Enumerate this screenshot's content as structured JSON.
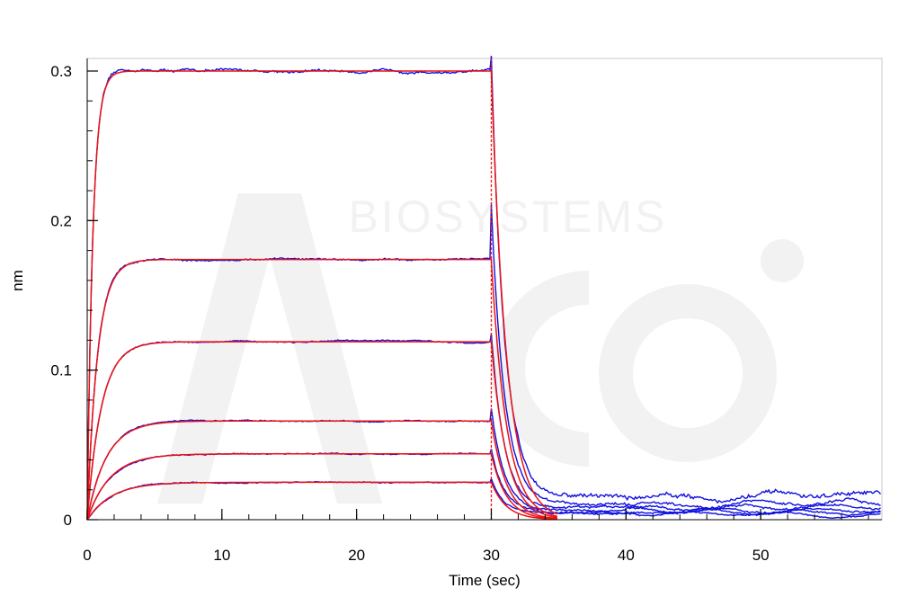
{
  "chart_data": {
    "type": "line",
    "title": "",
    "xlabel": "Time (sec)",
    "ylabel": "nm",
    "xlim": [
      0,
      59
    ],
    "ylim": [
      0,
      0.3
    ],
    "x_ticks": [
      0,
      10,
      20,
      30,
      40,
      50
    ],
    "x_tick_labels": [
      "0",
      "10",
      "20",
      "30",
      "40",
      "50"
    ],
    "y_ticks": [
      0,
      0.1,
      0.2,
      0.3
    ],
    "y_tick_labels": [
      "0",
      "0.1",
      "0.2",
      "0.3"
    ],
    "grid": false,
    "legend": "none",
    "phase_boundary_x": 30,
    "watermark_text": "BIOSYSTEMS",
    "colors": {
      "measured": "#1010e0",
      "fitted": "#ee1111",
      "boundary": "#ee1111",
      "frame": "#c8c8c8",
      "watermark": "#f2f2f2"
    },
    "curves": [
      {
        "plateau": 0.3,
        "kobs": 2.4,
        "noise": 0.002,
        "residual": 0.016,
        "decay_start": 0.308
      },
      {
        "plateau": 0.174,
        "kobs": 1.3,
        "noise": 0.0012,
        "residual": 0.011,
        "decay_start": 0.21
      },
      {
        "plateau": 0.119,
        "kobs": 0.95,
        "noise": 0.001,
        "residual": 0.008,
        "decay_start": 0.125
      },
      {
        "plateau": 0.066,
        "kobs": 0.7,
        "noise": 0.0009,
        "residual": 0.006,
        "decay_start": 0.075
      },
      {
        "plateau": 0.044,
        "kobs": 0.6,
        "noise": 0.0008,
        "residual": 0.005,
        "decay_start": 0.047
      },
      {
        "plateau": 0.025,
        "kobs": 0.55,
        "noise": 0.0008,
        "residual": 0.004,
        "decay_start": 0.027
      }
    ],
    "dissociation_k": 1.05,
    "fit_end_x": 35,
    "series": [
      {
        "role": "measured",
        "values_note": ""
      },
      {
        "role": "fitted",
        "values_note": ""
      }
    ]
  }
}
